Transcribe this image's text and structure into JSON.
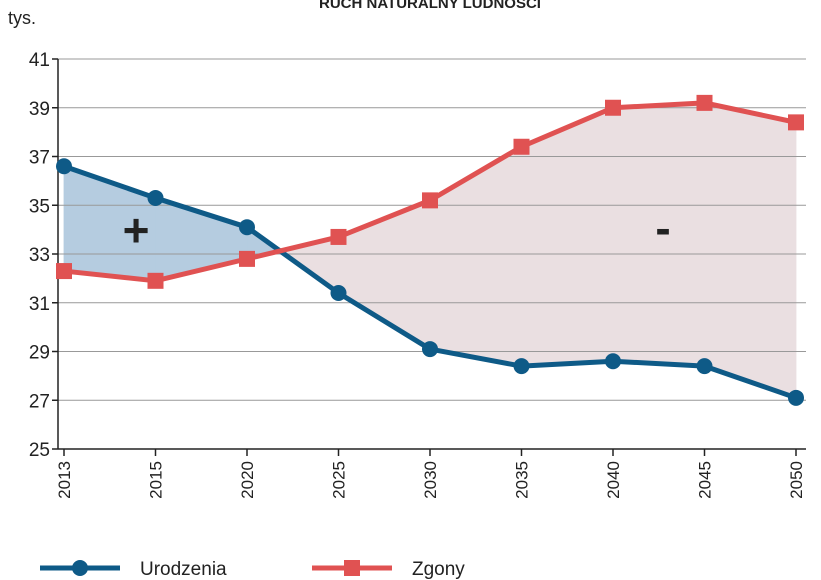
{
  "chart_data": {
    "type": "line",
    "title": "RUCH NATURALNY LUDNOŚCI",
    "y_label": "tys.",
    "categories": [
      "2013",
      "2015",
      "2020",
      "2025",
      "2030",
      "2035",
      "2040",
      "2045",
      "2050"
    ],
    "series": [
      {
        "name": "Urodzenia",
        "color": "#0e5a87",
        "marker": "circle",
        "values": [
          36.6,
          35.3,
          34.1,
          31.4,
          29.1,
          28.4,
          28.6,
          28.4,
          27.1
        ]
      },
      {
        "name": "Zgony",
        "color": "#e05252",
        "marker": "square",
        "values": [
          32.3,
          31.9,
          32.8,
          33.7,
          35.2,
          37.4,
          39.0,
          39.2,
          38.4
        ]
      }
    ],
    "fill_colors": {
      "positive": "#b5cce0",
      "negative": "#eadfe1"
    },
    "annotations": [
      "+",
      "-"
    ],
    "ylim": [
      25,
      41
    ],
    "yticks": [
      25,
      27,
      29,
      31,
      33,
      35,
      37,
      39,
      41
    ],
    "grid": true,
    "legend": "bottom-left"
  }
}
